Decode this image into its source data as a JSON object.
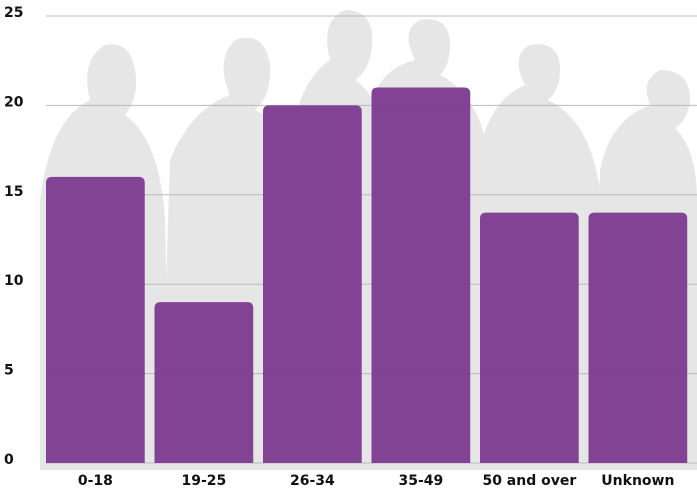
{
  "chart_data": {
    "type": "bar",
    "categories": [
      "0-18",
      "19-25",
      "26-34",
      "35-49",
      "50 and over",
      "Unknown"
    ],
    "values": [
      16,
      9,
      20,
      21,
      14,
      14
    ],
    "color": "#7e3d92",
    "ylim": [
      0,
      25
    ],
    "yticks": [
      0,
      5,
      10,
      15,
      20,
      25
    ],
    "grid": true
  }
}
